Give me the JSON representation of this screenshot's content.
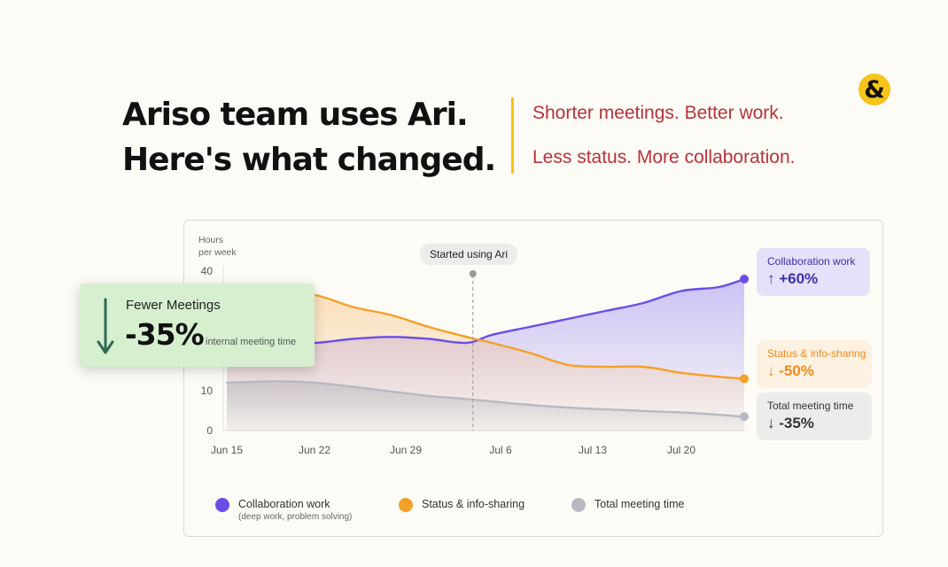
{
  "header": {
    "line1": "Ariso team uses Ari.",
    "line2": "Here's what changed.",
    "tagline1": "Shorter meetings. Better work.",
    "tagline2": "Less status. More collaboration.",
    "logo_icon": "ampersand-logo-icon"
  },
  "colors": {
    "collab": "#6b4de6",
    "status": "#f5a028",
    "total": "#b8b9c0",
    "accent_yellow": "#f2c40f",
    "tagline_red": "#b8323a"
  },
  "chart_data": {
    "type": "area",
    "ylabel_line1": "Hours",
    "ylabel_line2": "per week",
    "ylim": [
      0,
      40
    ],
    "yticks": [
      0,
      10,
      40
    ],
    "xlabels": [
      "Jun 15",
      "Jun 22",
      "Jun 29",
      "Jul 6",
      "Jul 13",
      "Jul 20"
    ],
    "x_days": [
      0,
      7,
      14,
      21,
      28,
      35,
      42
    ],
    "marker": {
      "label": "Started using Ari",
      "day": 19.5
    },
    "series": [
      {
        "name": "Collaboration work",
        "color": "#6b4de6",
        "x": [
          0,
          3,
          7,
          10,
          13,
          16,
          19,
          21,
          24,
          27,
          30,
          33,
          36,
          39,
          41
        ],
        "y": [
          22,
          21.5,
          22,
          23,
          23.5,
          23,
          22,
          24,
          26,
          28,
          30,
          32,
          35,
          36,
          38
        ]
      },
      {
        "name": "Status & info-sharing",
        "color": "#f5a028",
        "x": [
          0,
          3,
          7,
          10,
          13,
          16,
          19,
          21,
          24,
          27,
          30,
          33,
          36,
          39,
          41
        ],
        "y": [
          36,
          35.5,
          34,
          31,
          29,
          26,
          23.5,
          22,
          19.5,
          16.5,
          16,
          16,
          14.5,
          13.5,
          13
        ]
      },
      {
        "name": "Total meeting time",
        "color": "#b8b9c0",
        "x": [
          0,
          3,
          5,
          7,
          10,
          13,
          16,
          19,
          22,
          25,
          28,
          31,
          34,
          37,
          41
        ],
        "y": [
          12,
          12.3,
          12.3,
          12,
          11,
          9.8,
          8.7,
          7.9,
          7,
          6.2,
          5.6,
          5.2,
          4.8,
          4.4,
          3.5
        ]
      }
    ]
  },
  "started_label": "Started using Ari",
  "annotations": {
    "collab": {
      "title": "Collaboration work",
      "value": "↑ +60%"
    },
    "status": {
      "title": "Status & info-sharing",
      "value": "↓ -50%"
    },
    "total": {
      "title": "Total meeting time",
      "value": "↓ -35%"
    }
  },
  "callout": {
    "title": "Fewer Meetings",
    "value": "-35%",
    "subtitle": "internal meeting time"
  },
  "legend": [
    {
      "label": "Collaboration work",
      "sub": "(deep work, problem solving)"
    },
    {
      "label": "Status & info-sharing",
      "sub": ""
    },
    {
      "label": "Total meeting time",
      "sub": ""
    }
  ]
}
